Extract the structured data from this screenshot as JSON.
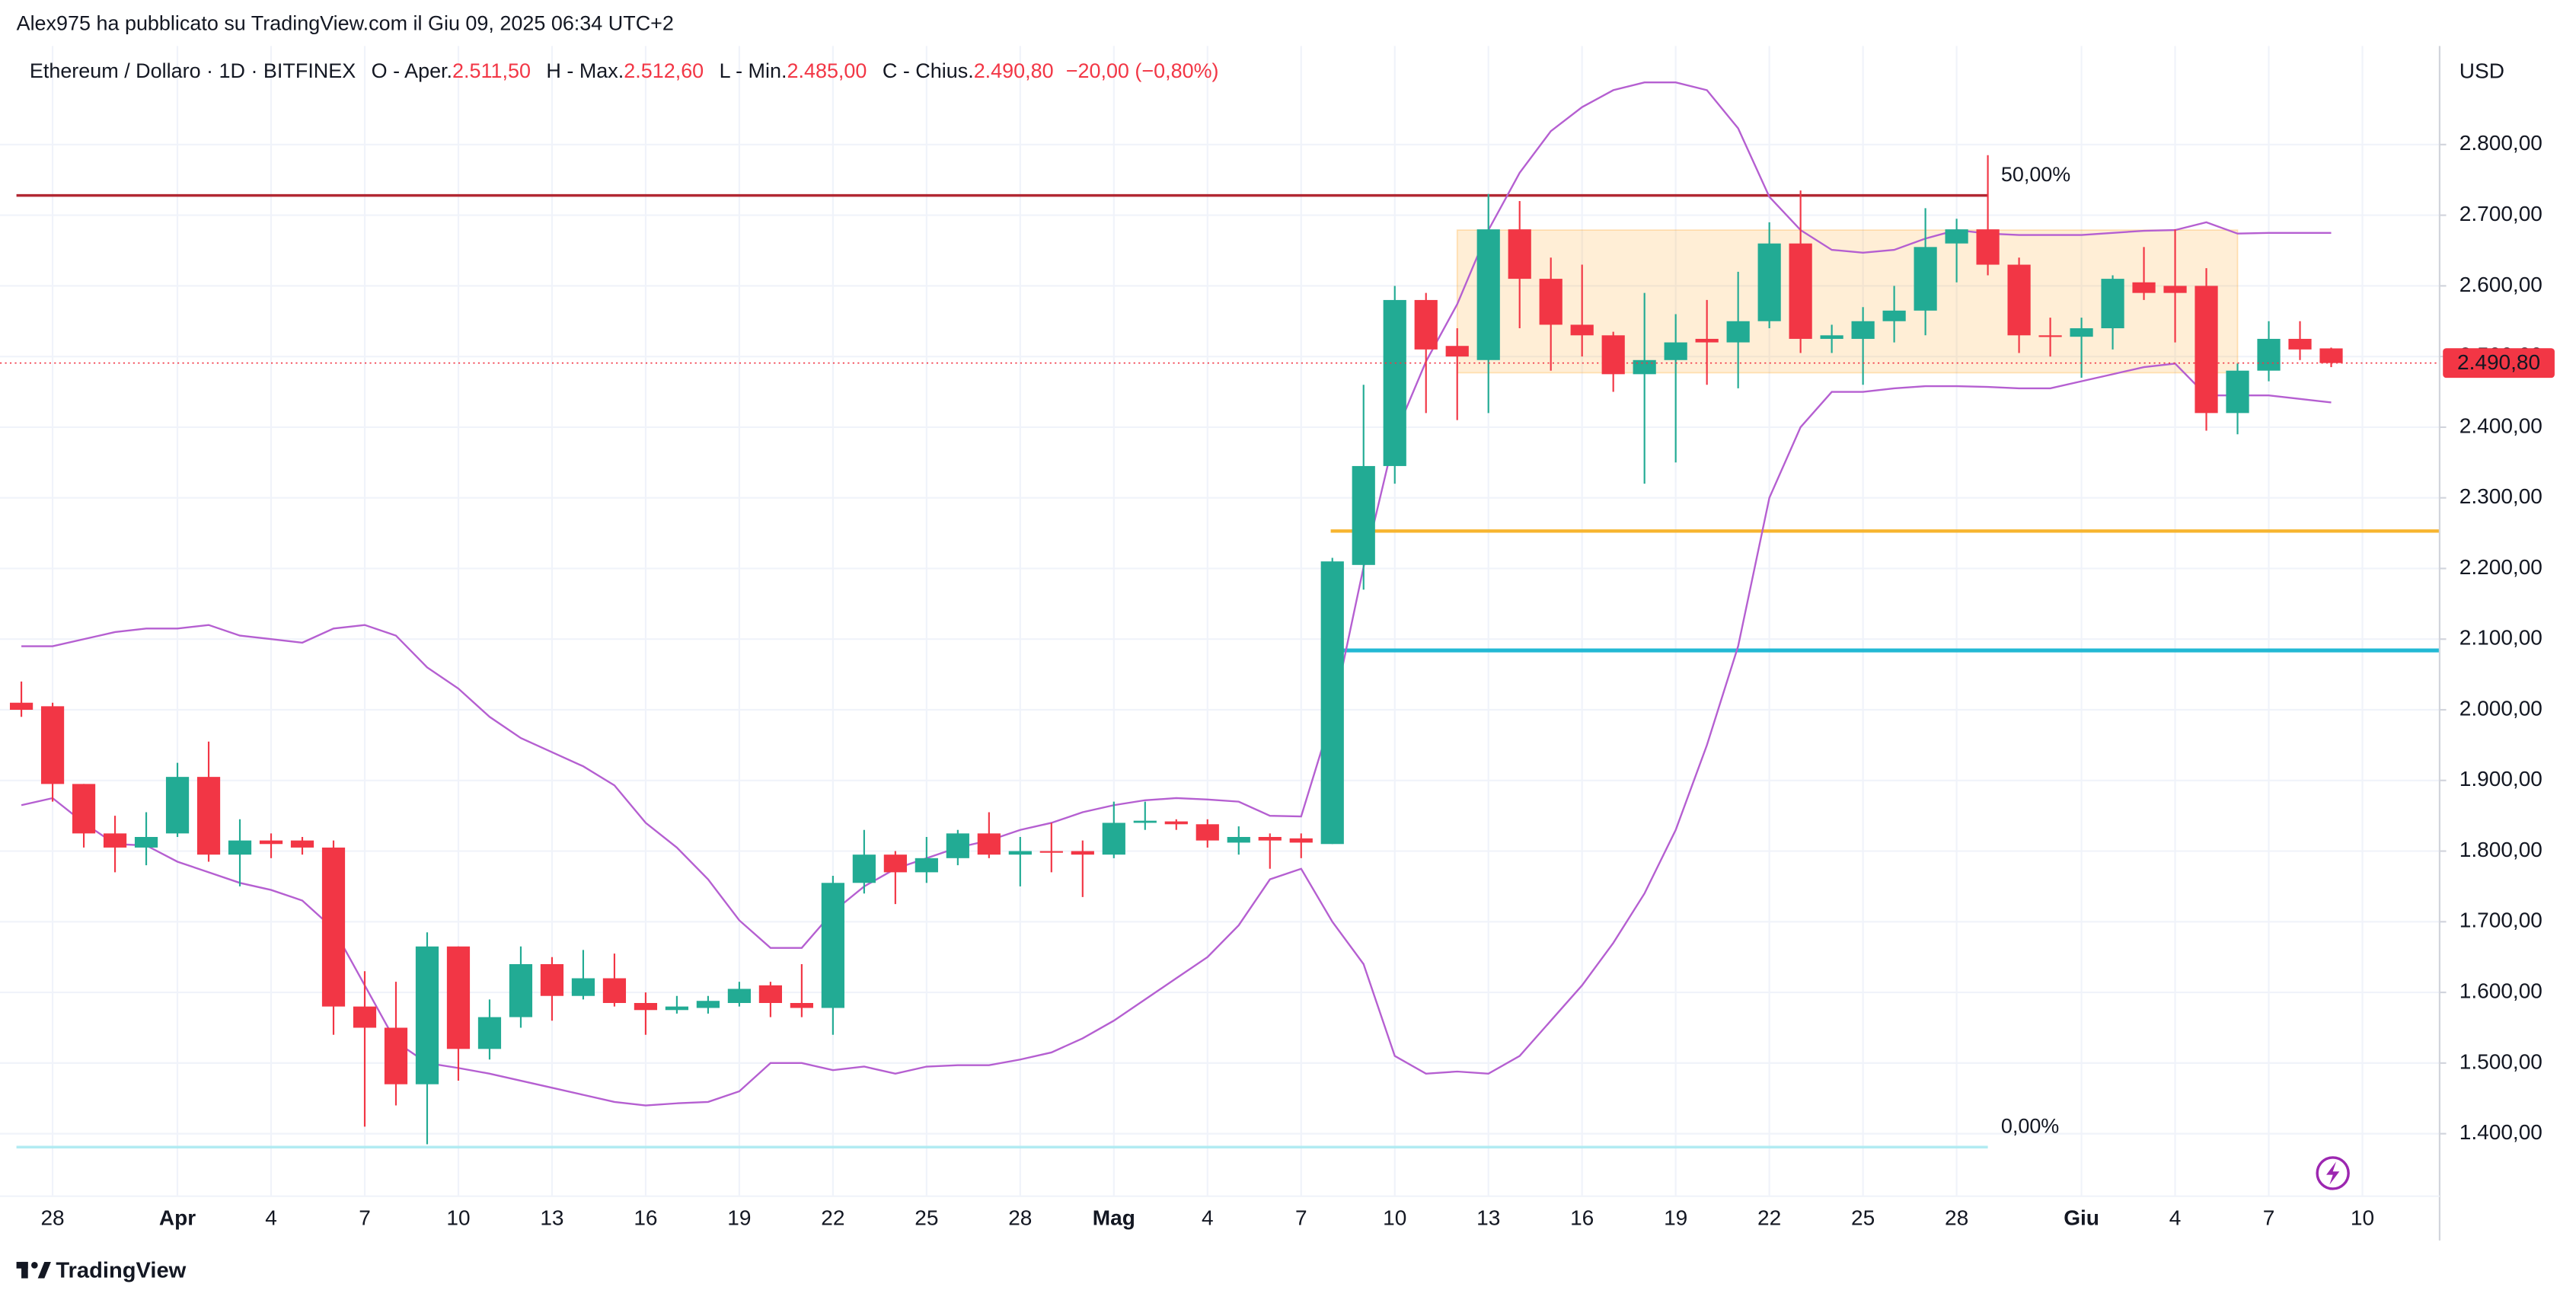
{
  "header": {
    "published": "Alex975 ha pubblicato su TradingView.com il Giu 09, 2025 06:34 UTC+2",
    "brand": "TradingView"
  },
  "chart_data": {
    "type": "candlestick",
    "legend": {
      "symbol": "Ethereum / Dollaro · 1D · BITFINEX",
      "o_label": "O - Aper.",
      "o": "2.511,50",
      "h_label": "H - Max.",
      "h": "2.512,60",
      "l_label": "L - Min.",
      "l": "2.485,00",
      "c_label": "C - Chius.",
      "c": "2.490,80",
      "change": "−20,00 (−0,80%)"
    },
    "currency": "USD",
    "price_label": "2.490,80",
    "up_color": "#22ab94",
    "down_color": "#f23645",
    "categories": [
      null,
      "28",
      null,
      null,
      null,
      "Apr",
      null,
      null,
      "4",
      null,
      null,
      "7",
      null,
      null,
      "10",
      null,
      null,
      "13",
      null,
      null,
      "16",
      null,
      null,
      "19",
      null,
      null,
      "22",
      null,
      null,
      "25",
      null,
      null,
      "28",
      null,
      null,
      "Mag",
      null,
      null,
      "4",
      null,
      null,
      "7",
      null,
      null,
      "10",
      null,
      null,
      "13",
      null,
      null,
      "16",
      null,
      null,
      "19",
      null,
      null,
      "22",
      null,
      null,
      "25",
      null,
      null,
      "28",
      null,
      null,
      null,
      "Giu",
      null,
      null,
      "4",
      null,
      null,
      "7",
      null,
      null,
      "10"
    ],
    "open": [
      2010,
      2005,
      1895,
      1825,
      1805,
      1825,
      1905,
      1795,
      1815,
      1815,
      1805,
      1580,
      1550,
      1470,
      1665,
      1520,
      1565,
      1640,
      1595,
      1620,
      1585,
      1575,
      1578,
      1585,
      1610,
      1585,
      1578,
      1755,
      1795,
      1770,
      1790,
      1825,
      1795,
      1800,
      1800,
      1795,
      1840,
      1842,
      1838,
      1812,
      1820,
      1818,
      1810,
      2205,
      2345,
      2580,
      2515,
      2495,
      2680,
      2610,
      2545,
      2530,
      2475,
      2495,
      2525,
      2520,
      2550,
      2660,
      2525,
      2525,
      2550,
      2565,
      2660,
      2680,
      2630,
      2530,
      2528,
      2540,
      2605,
      2600,
      2600,
      2420,
      2480,
      2525,
      2511.5,
      null
    ],
    "high": [
      2040,
      2010,
      1895,
      1850,
      1855,
      1925,
      1955,
      1845,
      1825,
      1820,
      1815,
      1630,
      1615,
      1685,
      1665,
      1590,
      1665,
      1650,
      1660,
      1655,
      1600,
      1595,
      1595,
      1615,
      1615,
      1640,
      1765,
      1830,
      1800,
      1820,
      1830,
      1855,
      1820,
      1840,
      1815,
      1870,
      1870,
      1845,
      1845,
      1835,
      1825,
      1825,
      2215,
      2460,
      2600,
      2590,
      2540,
      2730,
      2720,
      2640,
      2630,
      2535,
      2590,
      2560,
      2580,
      2620,
      2690,
      2735,
      2545,
      2570,
      2600,
      2710,
      2695,
      2785,
      2640,
      2555,
      2555,
      2615,
      2655,
      2680,
      2625,
      2490,
      2550,
      2550,
      2512.6,
      null
    ],
    "low": [
      1990,
      1870,
      1805,
      1770,
      1780,
      1820,
      1785,
      1750,
      1790,
      1795,
      1540,
      1410,
      1440,
      1385,
      1475,
      1505,
      1550,
      1560,
      1590,
      1580,
      1540,
      1570,
      1570,
      1580,
      1565,
      1565,
      1540,
      1740,
      1725,
      1755,
      1780,
      1790,
      1750,
      1770,
      1735,
      1790,
      1830,
      1830,
      1805,
      1795,
      1775,
      1790,
      1810,
      2170,
      2320,
      2420,
      2410,
      2420,
      2540,
      2480,
      2500,
      2450,
      2320,
      2350,
      2460,
      2455,
      2540,
      2505,
      2505,
      2460,
      2520,
      2530,
      2605,
      2615,
      2505,
      2500,
      2470,
      2510,
      2580,
      2520,
      2395,
      2390,
      2465,
      2495,
      2485,
      null
    ],
    "close": [
      2000,
      1895,
      1825,
      1805,
      1820,
      1905,
      1795,
      1815,
      1810,
      1805,
      1580,
      1550,
      1470,
      1665,
      1520,
      1565,
      1640,
      1595,
      1620,
      1585,
      1575,
      1580,
      1588,
      1605,
      1585,
      1578,
      1755,
      1795,
      1770,
      1790,
      1825,
      1795,
      1800,
      1798,
      1795,
      1840,
      1843,
      1838,
      1815,
      1820,
      1815,
      1812,
      2210,
      2345,
      2580,
      2510,
      2500,
      2680,
      2610,
      2545,
      2530,
      2475,
      2495,
      2520,
      2520,
      2550,
      2660,
      2525,
      2530,
      2550,
      2565,
      2655,
      2680,
      2630,
      2530,
      2528,
      2540,
      2610,
      2590,
      2590,
      2420,
      2480,
      2525,
      2510,
      2490.8,
      null
    ],
    "series": [
      {
        "color": "#b55fd1",
        "values": [
          2090,
          2090,
          2100,
          2110,
          2115,
          2115,
          2120,
          2105,
          2100,
          2095,
          2115,
          2120,
          2105,
          2060,
          2030,
          1990,
          1960,
          1940,
          1920,
          1893,
          1840,
          1805,
          1760,
          1702,
          1663,
          1663,
          1714,
          1750,
          1775,
          1790,
          1805,
          1815,
          1830,
          1840,
          1855,
          1865,
          1872,
          1875,
          1873,
          1870,
          1850,
          1849,
          1993,
          2202,
          2388,
          2493,
          2574,
          2679,
          2760,
          2819,
          2853,
          2877,
          2888,
          2888,
          2877,
          2823,
          2726,
          2679,
          2651,
          2647,
          2651,
          2667,
          2679,
          2674,
          2672,
          2672,
          2672,
          2675,
          2678,
          2679,
          2690,
          2674,
          2675,
          2675,
          2675,
          null
        ]
      },
      {
        "color": "#b55fd1",
        "values": [
          1865,
          1875,
          1840,
          1810,
          1808,
          1785,
          1770,
          1755,
          1745,
          1730,
          1690,
          1610,
          1530,
          1500,
          1493,
          1485,
          1475,
          1465,
          1455,
          1445,
          1440,
          1443,
          1445,
          1460,
          1500,
          1500,
          1490,
          1495,
          1485,
          1495,
          1497,
          1497,
          1505,
          1515,
          1535,
          1560,
          1590,
          1620,
          1650,
          1695,
          1760,
          1775,
          1700,
          1640,
          1510,
          1485,
          1488,
          1485,
          1510,
          1560,
          1610,
          1670,
          1740,
          1830,
          1950,
          2090,
          2300,
          2400,
          2450,
          2450,
          2455,
          2458,
          2458,
          2457,
          2455,
          2455,
          2465,
          2475,
          2485,
          2490,
          2445,
          2445,
          2445,
          2440,
          2435,
          null
        ]
      }
    ],
    "levels": [
      {
        "value": 2728,
        "color": "#b22833"
      },
      {
        "value": 2253,
        "color": "#f7b530"
      },
      {
        "value": 2084,
        "color": "#22b8d4"
      },
      {
        "value": 1381,
        "color": "#b2ebf2"
      }
    ],
    "annotations": [
      {
        "text": "50,00%",
        "color": "#d0434f"
      },
      {
        "text": "0,00%",
        "color": "#b2ebf2"
      }
    ],
    "box": {
      "top": 2679,
      "bottom": 2477,
      "color": "#ff9800"
    },
    "ylim": [
      1311.6,
      2939.5
    ],
    "yticks": [
      {
        "value": 1400,
        "label": "1.400,00"
      },
      {
        "value": 1500,
        "label": "1.500,00"
      },
      {
        "value": 1600,
        "label": "1.600,00"
      },
      {
        "value": 1700,
        "label": "1.700,00"
      },
      {
        "value": 1800,
        "label": "1.800,00"
      },
      {
        "value": 1900,
        "label": "1.900,00"
      },
      {
        "value": 2000,
        "label": "2.000,00"
      },
      {
        "value": 2100,
        "label": "2.100,00"
      },
      {
        "value": 2200,
        "label": "2.200,00"
      },
      {
        "value": 2300,
        "label": "2.300,00"
      },
      {
        "value": 2400,
        "label": "2.400,00"
      },
      {
        "value": 2500,
        "label": "2.500,00"
      },
      {
        "value": 2600,
        "label": "2.600,00"
      },
      {
        "value": 2700,
        "label": "2.700,00"
      },
      {
        "value": 2800,
        "label": "2.800,00"
      }
    ],
    "grid": true
  }
}
